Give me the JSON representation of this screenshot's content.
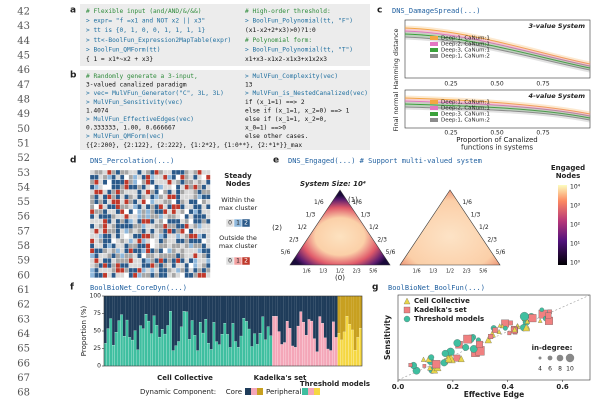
{
  "line_numbers": [
    42,
    43,
    44,
    45,
    46,
    47,
    48,
    49,
    50,
    51,
    52,
    53,
    54,
    55,
    56,
    57,
    58,
    59,
    60,
    61,
    62,
    63,
    64,
    65,
    66,
    67,
    68
  ],
  "panels": {
    "a": {
      "label": "a",
      "code_left": [
        "# Flexible input (and/AND/&/&&)",
        "> expr= \"f =x1 and NOT x2 || x3\"",
        "> tt is {0, 1, 0, 0, 1, 1, 1, 1}",
        "> tt<-BoolFun_Expression2MapTable(expr)",
        "> BoolFun_QMForm(tt)",
        "  { 1 = x1*~x2 + x3}"
      ],
      "code_right": [
        "# High-order threshold:",
        "> BoolFun_Polynomial(tt, \"F\")",
        "  (x1-x2+2*x3)>0)?1:0",
        "# Polynomial form:",
        "> BoolFun_Polynomial(tt, \"T\")",
        "  x1+x3-x1x2-x1x3+x1x2x3"
      ]
    },
    "b": {
      "label": "b",
      "code_left": [
        "# Randomly generate a 3-input,",
        "  3-valued canalized paradigm",
        "> vec= MulVFun_Generator(\"C\", 3L, 3L)",
        "> MulVFun_Sensitivity(vec)",
        "  1.4074",
        "> MulVFun_EffectiveEdges(vec)",
        "  0.333333, 1.00, 0.666667",
        "> MulVFun_QMForm(vec)",
        "  {{2:200}, {2:122}, {2:222}, {1:2*2}, {1:0**}, {2:*1*}}_max"
      ],
      "code_right": [
        "> MulVFun_Complexity(vec)",
        "  13",
        "> MulVFun_is_NestedCanalized(vec)",
        "  if (x_1=1) ==> 2",
        "  else if (x_1=1, x_2=0) ==> 1",
        "  else if (x_1=1, x_2=0,",
        "     x_0=1) ==>0",
        "  else other cases."
      ]
    },
    "c": {
      "label": "c",
      "title": "DNS_DamageSpread(...)",
      "subtitles": [
        "3-value System",
        "4-value System"
      ],
      "legend": [
        "Deep:1, CaNum:1",
        "Deep:2, CaNum:1",
        "Deep:3, CaNum:1",
        "Deep:1, CaNum:2"
      ],
      "colors": [
        "#f4a742",
        "#e377c2",
        "#3aa13a",
        "#8c8c8c"
      ],
      "ylabel": "Final normal Hamming distance",
      "xlabel": [
        "Proportion of Canalized",
        "functions in systems"
      ],
      "xticks": [
        "0.25",
        "0.50",
        "0.75"
      ]
    },
    "d": {
      "label": "d",
      "title": "DNS_Percolation(...)",
      "legend_title": [
        "Steady",
        "Nodes"
      ],
      "within": [
        "Within the",
        "max cluster"
      ],
      "outside": [
        "Outside the",
        "max cluster"
      ],
      "states": [
        "0",
        "1",
        "2"
      ]
    },
    "e": {
      "label": "e",
      "title": "DNS_Engaged(...) # Support multi-valued system",
      "size": "System Size: 10⁴",
      "edge_ticks": [
        "1/6",
        "1/3",
        "1/2",
        "2/3",
        "5/6"
      ],
      "corners": [
        "(1)",
        "(2)",
        "(0)"
      ],
      "colorbar_title": [
        "Engaged",
        "Nodes"
      ],
      "colorbar_ticks": [
        "10⁴",
        "10³",
        "10²",
        "10¹",
        "10⁰"
      ]
    },
    "f": {
      "label": "f",
      "title": "BoolBioNet_CoreDyn(...)",
      "ylabel": "Proportion (%)",
      "ylim": [
        0,
        100
      ],
      "yticks": [
        0,
        25,
        50,
        75,
        100
      ],
      "groups": [
        "Cell Collective",
        "Kadelka's set",
        "Threshold models"
      ],
      "component": "Dynamic Component:",
      "core": "Core",
      "peripheral": "Peripheral"
    },
    "g": {
      "label": "g",
      "title": "BoolBioNet_BoolFun(...)",
      "legend": [
        "Cell Collective",
        "Kadelka's set",
        "Threshold models"
      ],
      "ylabel": "Sensitivity",
      "xlabel": "Effective Edge",
      "xlim": [
        0,
        0.7
      ],
      "xticks": [
        {
          "value": 0,
          "label": "0.0"
        },
        {
          "value": 0.2,
          "label": "0.2"
        },
        {
          "value": 0.4,
          "label": "0.4"
        },
        {
          "value": 0.6,
          "label": "0.6"
        }
      ],
      "indegree": "in-degree:",
      "sizes": [
        "4",
        "6",
        "8",
        "10"
      ]
    }
  }
}
